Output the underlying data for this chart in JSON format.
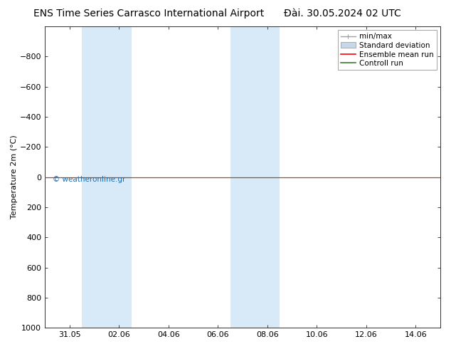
{
  "title_left": "ENS Time Series Carrasco International Airport",
  "title_right": "Đài. 30.05.2024 02 UTC",
  "ylabel": "Temperature 2m (°C)",
  "watermark": "© weatheronline.gr",
  "ylim_bottom": 1000,
  "ylim_top": -1000,
  "yticks": [
    -800,
    -600,
    -400,
    -200,
    0,
    200,
    400,
    600,
    800,
    1000
  ],
  "x_min": 0,
  "x_max": 16,
  "xtick_labels": [
    "31.05",
    "02.06",
    "04.06",
    "06.06",
    "08.06",
    "10.06",
    "12.06",
    "14.06"
  ],
  "xtick_positions": [
    1,
    3,
    5,
    7,
    9,
    11,
    13,
    15
  ],
  "shaded_bands": [
    {
      "x_start": 1.5,
      "x_end": 3.5
    },
    {
      "x_start": 7.5,
      "x_end": 9.5
    }
  ],
  "shaded_color": "#d8eaf8",
  "line_y": 0,
  "ensemble_mean_color": "#ff0000",
  "control_run_color": "#3a7d2c",
  "minmax_color": "#a0a0a0",
  "stddev_color": "#c8d8e8",
  "bg_color": "#ffffff",
  "plot_bg_color": "#ffffff",
  "border_color": "#303030",
  "legend_entries": [
    "min/max",
    "Standard deviation",
    "Ensemble mean run",
    "Controll run"
  ],
  "legend_colors": [
    "#a0a0a0",
    "#c8d8e8",
    "#ff0000",
    "#3a7d2c"
  ],
  "title_fontsize": 10,
  "axis_fontsize": 8,
  "tick_fontsize": 8,
  "legend_fontsize": 7.5,
  "watermark_color": "#1a6cb5"
}
